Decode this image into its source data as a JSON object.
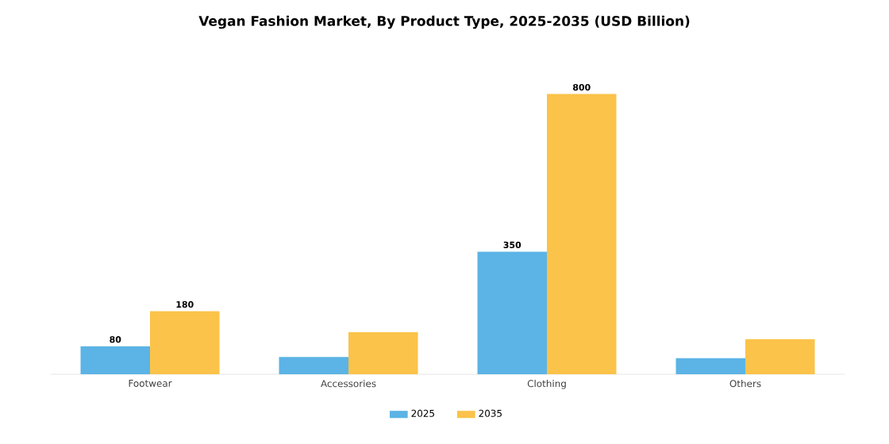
{
  "chart_data": {
    "type": "bar",
    "title": "Vegan Fashion Market, By Product Type, 2025-2035 (USD Billion)",
    "categories": [
      "Footwear",
      "Accessories",
      "Clothing",
      "Others"
    ],
    "series": [
      {
        "name": "2025",
        "color": "#5bb4e5",
        "values": [
          80,
          49,
          350,
          46
        ],
        "value_labels": [
          "80",
          null,
          "350",
          null
        ]
      },
      {
        "name": "2035",
        "color": "#fbc34a",
        "values": [
          180,
          120,
          800,
          100
        ],
        "value_labels": [
          "180",
          null,
          "800",
          null
        ]
      }
    ],
    "legend": "bottom",
    "grid": false
  }
}
